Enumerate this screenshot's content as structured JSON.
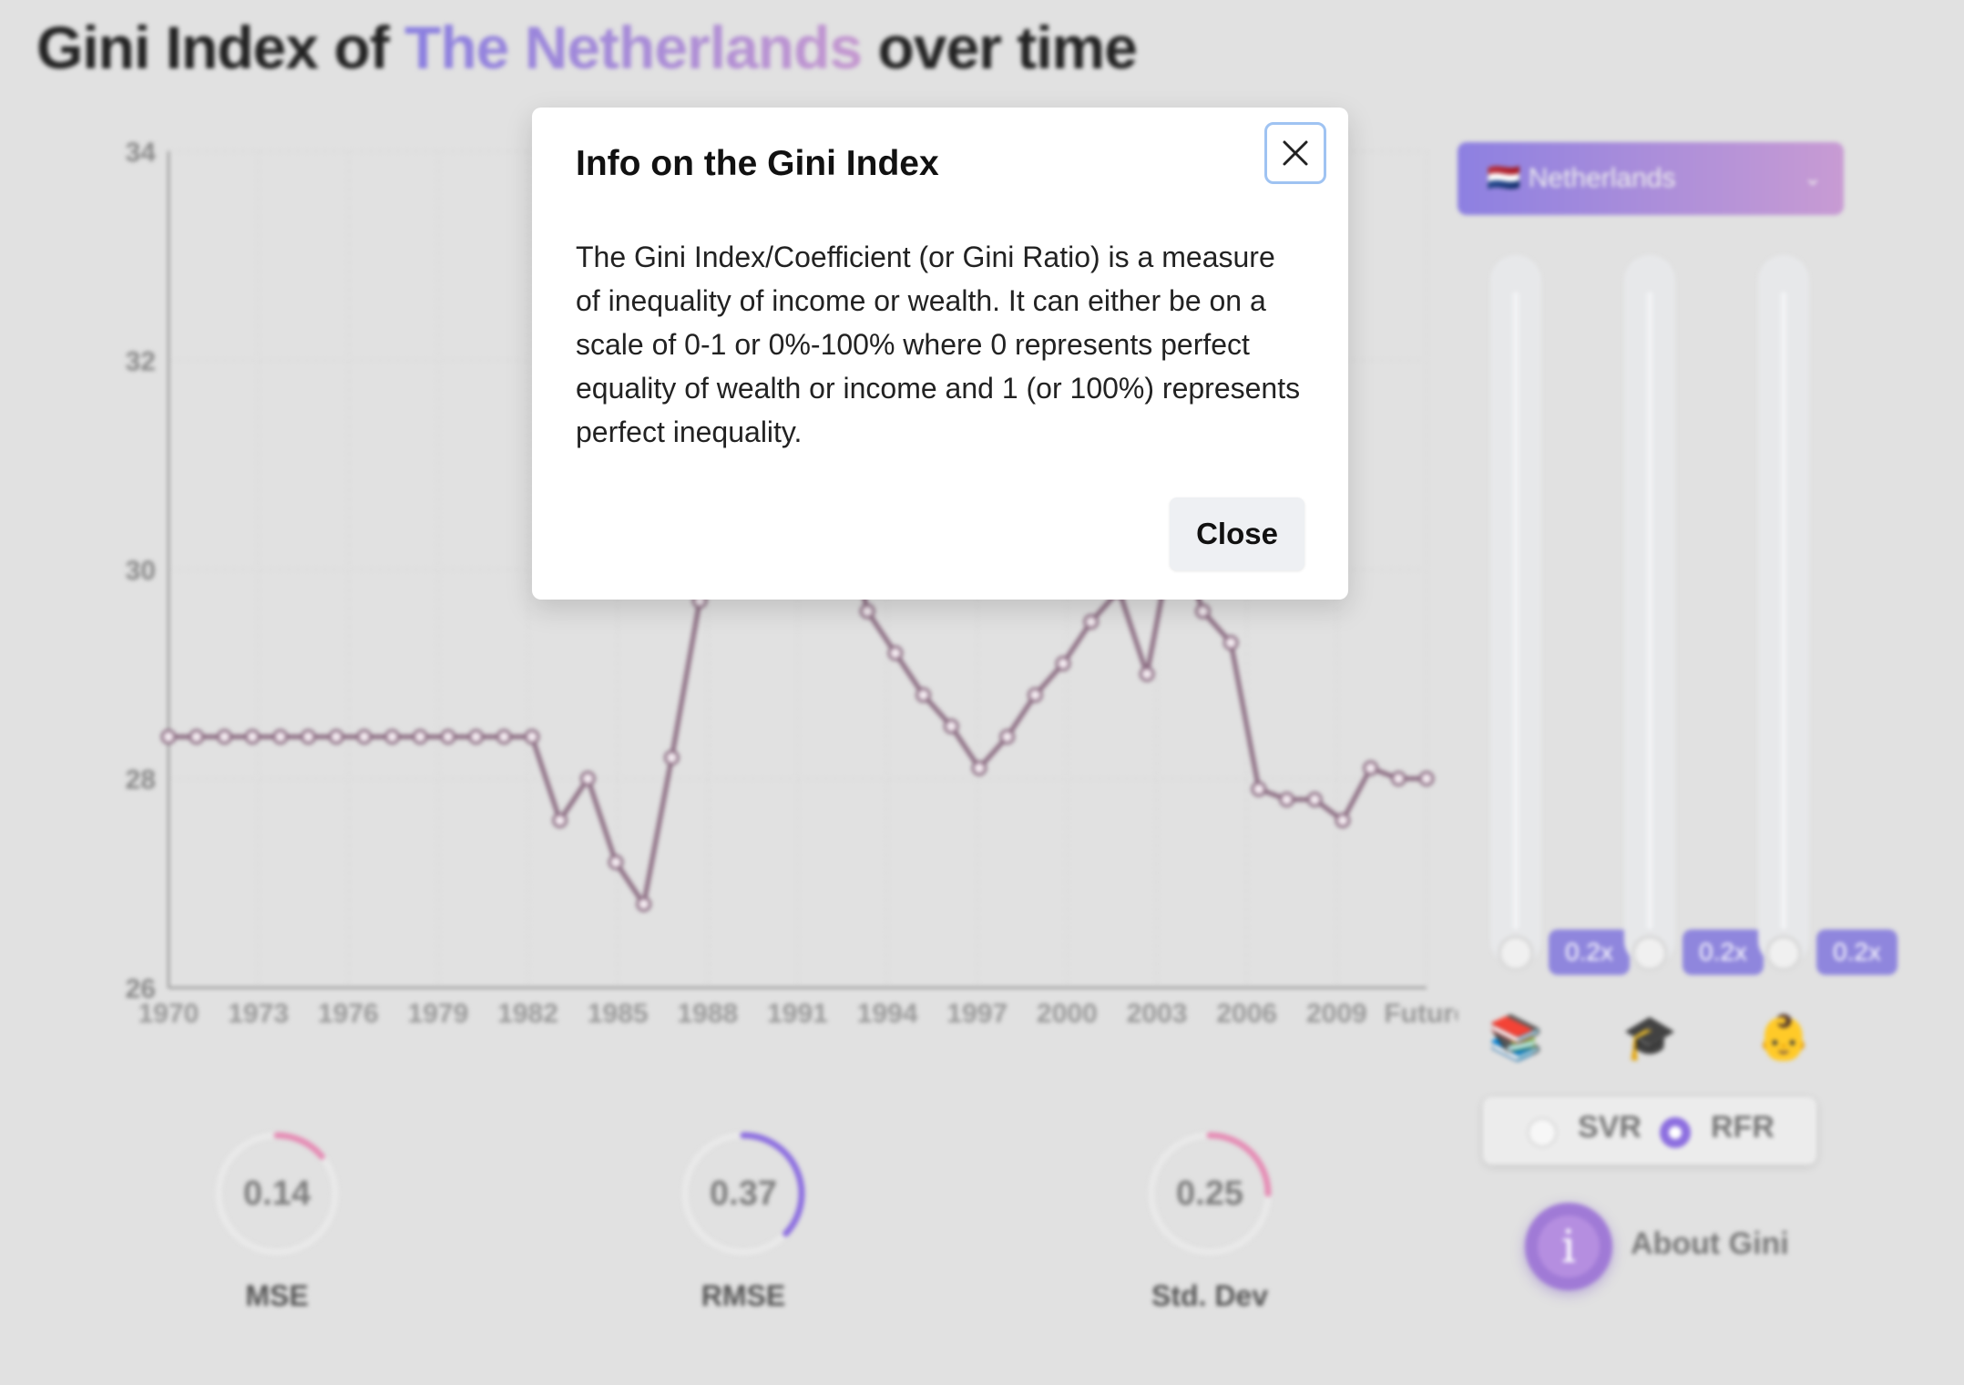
{
  "header": {
    "title_prefix": "Gini Index of ",
    "country": "The Netherlands",
    "title_suffix": " over time"
  },
  "chart_data": {
    "type": "line",
    "title": "",
    "xlabel": "",
    "ylabel": "",
    "ylim": [
      26,
      34
    ],
    "yticks": [
      26,
      28,
      30,
      32,
      34
    ],
    "xtick_labels": [
      "1970",
      "1973",
      "1976",
      "1979",
      "1982",
      "1985",
      "1988",
      "1991",
      "1994",
      "1997",
      "2000",
      "2003",
      "2006",
      "2009",
      "Future"
    ],
    "grid": true,
    "color": "#8a6a80",
    "x": [
      "1970",
      "1971",
      "1972",
      "1973",
      "1974",
      "1975",
      "1976",
      "1977",
      "1978",
      "1979",
      "1980",
      "1981",
      "1982",
      "1983",
      "1984",
      "1985",
      "1986",
      "1987",
      "1988",
      "1989",
      "1990",
      "1991",
      "1992",
      "1993",
      "1994",
      "1995",
      "1996",
      "1997",
      "1998",
      "1999",
      "2000",
      "2001",
      "2002",
      "2003",
      "2004",
      "2005",
      "2006",
      "2007",
      "2008",
      "2009",
      "2010",
      "2011",
      "2012",
      "2013",
      "2014",
      "Future"
    ],
    "values": [
      28.4,
      28.4,
      28.4,
      28.4,
      28.4,
      28.4,
      28.4,
      28.4,
      28.4,
      28.4,
      28.4,
      28.4,
      28.4,
      28.4,
      27.6,
      28.0,
      27.2,
      26.8,
      28.2,
      29.7,
      31.5,
      32.5,
      32.8,
      32.0,
      30.8,
      29.6,
      29.2,
      28.8,
      28.5,
      28.1,
      28.4,
      28.8,
      29.1,
      29.5,
      29.8,
      29.0,
      30.4,
      29.6,
      29.3,
      27.9,
      27.8,
      27.8,
      27.6,
      28.1,
      28.0,
      28.0
    ]
  },
  "metrics": [
    {
      "value": "0.14",
      "label": "MSE",
      "fraction": 0.14,
      "color": "#e58db5"
    },
    {
      "value": "0.37",
      "label": "RMSE",
      "fraction": 0.37,
      "color": "#8d6fe0"
    },
    {
      "value": "0.25",
      "label": "Std. Dev",
      "fraction": 0.25,
      "color": "#e58db5"
    }
  ],
  "sidebar": {
    "country_select": {
      "flag": "🇳🇱",
      "value": "Netherlands"
    },
    "sliders": [
      {
        "badge": "0.2x",
        "icon": "📚",
        "icon_name": "books-icon"
      },
      {
        "badge": "0.2x",
        "icon": "🎓",
        "icon_name": "graduation-cap-icon"
      },
      {
        "badge": "0.2x",
        "icon": "👶",
        "icon_name": "baby-icon"
      }
    ],
    "models": [
      {
        "label": "SVR",
        "selected": false
      },
      {
        "label": "RFR",
        "selected": true
      }
    ],
    "about_label": "About Gini",
    "about_icon": "i"
  },
  "modal": {
    "title": "Info on the Gini Index",
    "body": "The Gini Index/Coefficient (or Gini Ratio) is a measure of inequality of income or wealth. It can either be on a scale of 0-1 or 0%-100% where 0 represents perfect equality of wealth or income and 1 (or 100%) represents perfect inequality.",
    "close_label": "Close"
  }
}
